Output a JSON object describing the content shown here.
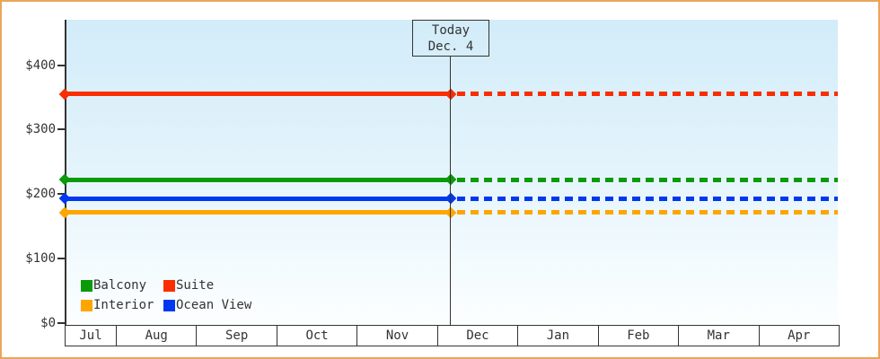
{
  "frame": {
    "border_color": "#eaa55e",
    "background": "#ffffff",
    "text_color": "#333333"
  },
  "chart_data": {
    "type": "line",
    "subject": "Cabin price by month (flat price lines, solid = up to today, dotted = projected after today)",
    "x_categories": [
      "Jul",
      "Aug",
      "Sep",
      "Oct",
      "Nov",
      "Dec",
      "Jan",
      "Feb",
      "Mar",
      "Apr"
    ],
    "y_ticks": [
      {
        "label": "$0",
        "value": 0
      },
      {
        "label": "$100",
        "value": 100
      },
      {
        "label": "$200",
        "value": 200
      },
      {
        "label": "$300",
        "value": 300
      },
      {
        "label": "$400",
        "value": 400
      }
    ],
    "ylim": [
      0,
      430
    ],
    "grid": false,
    "today_marker": {
      "line1": "Today",
      "line2": "Dec. 4",
      "month": "Dec",
      "day": 4
    },
    "series": [
      {
        "name": "Suite",
        "color": "#fa2e00",
        "value": 355,
        "style": "solid-then-dashed",
        "marker": "diamond"
      },
      {
        "name": "Balcony",
        "color": "#0a9a0a",
        "value": 222,
        "style": "solid-then-dashed",
        "marker": "diamond"
      },
      {
        "name": "Ocean View",
        "color": "#0038f0",
        "value": 193,
        "style": "solid-then-dashed",
        "marker": "diamond"
      },
      {
        "name": "Interior",
        "color": "#ffa500",
        "value": 171,
        "style": "solid-then-dashed",
        "marker": "diamond"
      }
    ],
    "legend": {
      "position": "bottom-left",
      "items": [
        {
          "label": "Balcony",
          "color": "#0a9a0a"
        },
        {
          "label": "Suite",
          "color": "#fa2e00"
        },
        {
          "label": "Interior",
          "color": "#ffa500"
        },
        {
          "label": "Ocean View",
          "color": "#0038f0"
        }
      ]
    }
  }
}
